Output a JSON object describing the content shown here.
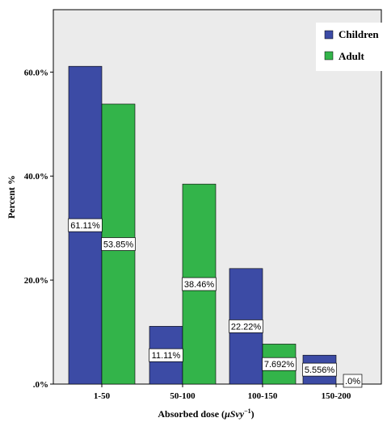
{
  "chart_data": {
    "type": "bar",
    "categories": [
      "1-50",
      "50-100",
      "100-150",
      "150-200"
    ],
    "series": [
      {
        "name": "Children",
        "color": "#3c4ba5",
        "values": [
          61.11,
          11.11,
          22.22,
          5.556
        ],
        "labels": [
          "61.11%",
          "11.11%",
          "22.22%",
          "5.556%"
        ]
      },
      {
        "name": "Adult",
        "color": "#33b44a",
        "values": [
          53.85,
          38.46,
          7.692,
          0
        ],
        "labels": [
          "53.85%",
          "38.46%",
          "7.692%",
          ".0%"
        ]
      }
    ],
    "title": "",
    "xlabel": "Absorbed dose (",
    "xlabel_unit": "μSvy",
    "xlabel_exponent": "−1",
    "xlabel_close": ")",
    "ylabel": "Percent %",
    "yticks": [
      0,
      20,
      40,
      60
    ],
    "ytick_labels": [
      ".0%",
      "20.0%",
      "40.0%",
      "60.0%"
    ],
    "ylim": [
      0,
      72
    ],
    "grid": false,
    "legend_position": "top-right",
    "plot_background": "#ebebeb"
  }
}
